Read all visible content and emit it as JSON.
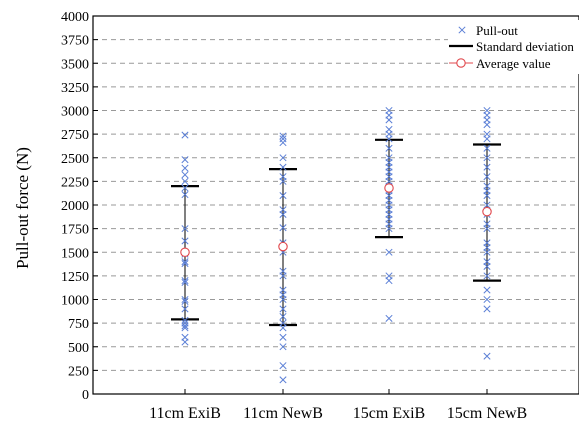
{
  "chart_data": {
    "type": "scatter",
    "ylabel": "Pull-out force (N)",
    "xlabel": "",
    "title": "",
    "ylim": [
      0,
      4000
    ],
    "yticks": [
      0,
      250,
      500,
      750,
      1000,
      1250,
      1500,
      1750,
      2000,
      2250,
      2500,
      2750,
      3000,
      3250,
      3500,
      3750,
      4000
    ],
    "grid": true,
    "legend_position": "top-right",
    "categories": [
      "11cm ExiB",
      "11cm NewB",
      "15cm ExiB",
      "15cm NewB"
    ],
    "legend": {
      "pullout": "Pull-out",
      "std": "Standard deviation",
      "avg": "Average value"
    },
    "colors": {
      "pullout": "#5b7fd6",
      "average": "#e0474c",
      "std": "#000000",
      "grid": "#999999"
    },
    "groups": [
      {
        "category": "11cm ExiB",
        "average": 1500,
        "std_low": 790,
        "std_high": 2200,
        "points": [
          2740,
          2480,
          2390,
          2320,
          2250,
          2180,
          2110,
          1750,
          1620,
          1480,
          1400,
          1380,
          1200,
          1180,
          1000,
          980,
          900,
          780,
          750,
          720,
          700,
          600,
          550
        ]
      },
      {
        "category": "11cm NewB",
        "average": 1560,
        "std_low": 730,
        "std_high": 2380,
        "points": [
          2730,
          2700,
          2660,
          2500,
          2400,
          2300,
          2250,
          2100,
          1950,
          1900,
          1760,
          1600,
          1500,
          1300,
          1250,
          1100,
          1050,
          1000,
          900,
          820,
          750,
          700,
          600,
          500,
          300,
          150
        ]
      },
      {
        "category": "15cm ExiB",
        "average": 2180,
        "std_low": 1660,
        "std_high": 2690,
        "points": [
          3000,
          2950,
          2900,
          2800,
          2750,
          2700,
          2600,
          2500,
          2450,
          2400,
          2350,
          2300,
          2250,
          2200,
          2150,
          2100,
          2050,
          2000,
          1950,
          1900,
          1850,
          1800,
          1750,
          1500,
          1250,
          1200,
          800
        ]
      },
      {
        "category": "15cm NewB",
        "average": 1930,
        "std_low": 1200,
        "std_high": 2640,
        "points": [
          3000,
          2950,
          2900,
          2850,
          2750,
          2700,
          2600,
          2500,
          2400,
          2300,
          2200,
          2150,
          2100,
          2000,
          1900,
          1800,
          1750,
          1600,
          1550,
          1500,
          1400,
          1350,
          1250,
          1100,
          1000,
          900,
          400
        ]
      }
    ]
  }
}
